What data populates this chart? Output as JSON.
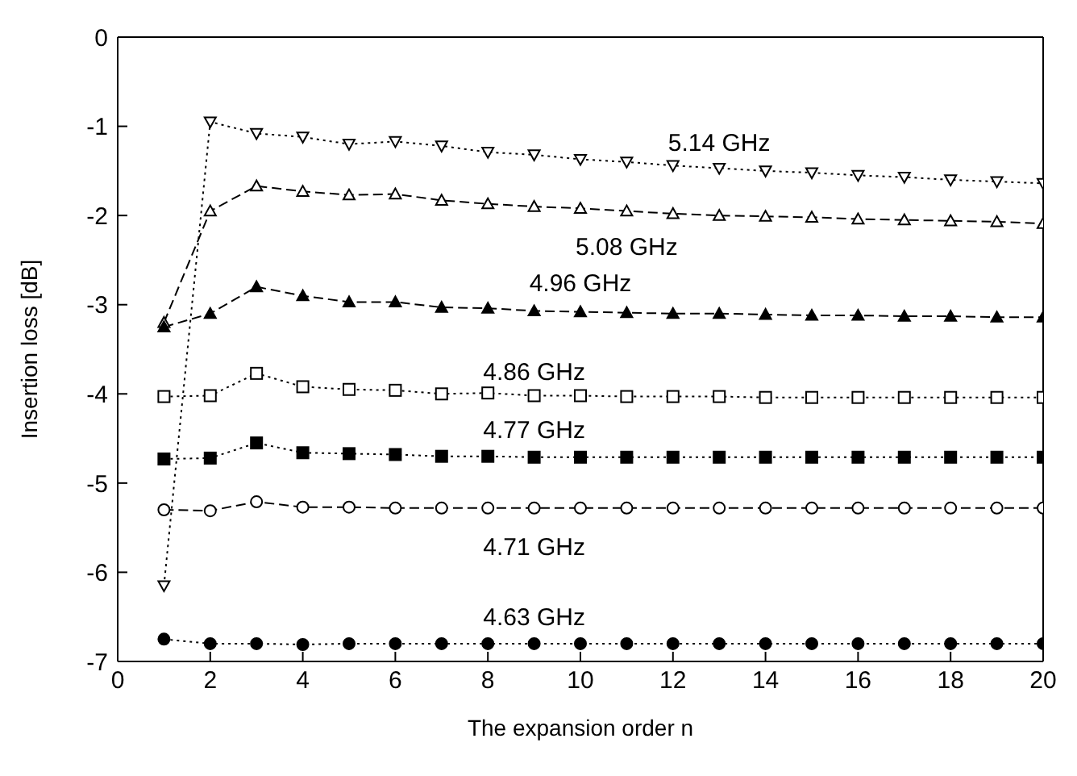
{
  "chart_data": {
    "type": "line",
    "xlabel": "The expansion order n",
    "ylabel": "Insertion loss [dB]",
    "x": [
      1,
      2,
      3,
      4,
      5,
      6,
      7,
      8,
      9,
      10,
      11,
      12,
      13,
      14,
      15,
      16,
      17,
      18,
      19,
      20
    ],
    "xlim": [
      0,
      20
    ],
    "xticks": [
      0,
      2,
      4,
      6,
      8,
      10,
      12,
      14,
      16,
      18,
      20
    ],
    "ylim": [
      -7,
      0
    ],
    "yticks": [
      -7,
      -6,
      -5,
      -4,
      -3,
      -2,
      -1,
      0
    ],
    "grid": false,
    "series": [
      {
        "name": "5.14 GHz",
        "color": "#000000",
        "marker": "triangle-down",
        "line_style": "dotted",
        "values": [
          -6.15,
          -0.95,
          -1.08,
          -1.12,
          -1.2,
          -1.17,
          -1.22,
          -1.29,
          -1.32,
          -1.37,
          -1.4,
          -1.44,
          -1.47,
          -1.5,
          -1.52,
          -1.55,
          -1.57,
          -1.6,
          -1.62,
          -1.64
        ]
      },
      {
        "name": "5.08 GHz",
        "color": "#000000",
        "marker": "triangle",
        "line_style": "dashed",
        "values": [
          -3.2,
          -1.95,
          -1.67,
          -1.73,
          -1.77,
          -1.76,
          -1.83,
          -1.87,
          -1.9,
          -1.92,
          -1.95,
          -1.98,
          -2.0,
          -2.01,
          -2.02,
          -2.04,
          -2.05,
          -2.06,
          -2.07,
          -2.09
        ]
      },
      {
        "name": "4.96 GHz",
        "color": "#000000",
        "marker": "triangle",
        "line_style": "dashed",
        "values": [
          -3.25,
          -3.1,
          -2.8,
          -2.9,
          -2.97,
          -2.97,
          -3.03,
          -3.04,
          -3.07,
          -3.08,
          -3.09,
          -3.1,
          -3.1,
          -3.11,
          -3.12,
          -3.12,
          -3.13,
          -3.13,
          -3.14,
          -3.14
        ]
      },
      {
        "name": "4.86 GHz",
        "color": "#000000",
        "marker": "square",
        "line_style": "dotted",
        "values": [
          -4.03,
          -4.02,
          -3.77,
          -3.92,
          -3.95,
          -3.96,
          -4.0,
          -3.99,
          -4.02,
          -4.02,
          -4.03,
          -4.03,
          -4.03,
          -4.04,
          -4.04,
          -4.04,
          -4.04,
          -4.04,
          -4.04,
          -4.04
        ]
      },
      {
        "name": "4.77 GHz",
        "color": "#000000",
        "marker": "square",
        "line_style": "dotted",
        "values": [
          -4.73,
          -4.72,
          -4.55,
          -4.66,
          -4.67,
          -4.68,
          -4.7,
          -4.7,
          -4.71,
          -4.71,
          -4.71,
          -4.71,
          -4.71,
          -4.71,
          -4.71,
          -4.71,
          -4.71,
          -4.71,
          -4.71,
          -4.71
        ]
      },
      {
        "name": "4.71 GHz",
        "color": "#000000",
        "marker": "circle",
        "line_style": "dashed",
        "values": [
          -5.3,
          -5.31,
          -5.21,
          -5.27,
          -5.27,
          -5.28,
          -5.28,
          -5.28,
          -5.28,
          -5.28,
          -5.28,
          -5.28,
          -5.28,
          -5.28,
          -5.28,
          -5.28,
          -5.28,
          -5.28,
          -5.28,
          -5.28
        ]
      },
      {
        "name": "4.63 GHz",
        "color": "#000000",
        "marker": "circle",
        "line_style": "dotted",
        "values": [
          -6.75,
          -6.8,
          -6.8,
          -6.81,
          -6.8,
          -6.8,
          -6.8,
          -6.8,
          -6.8,
          -6.8,
          -6.8,
          -6.8,
          -6.8,
          -6.8,
          -6.8,
          -6.8,
          -6.8,
          -6.8,
          -6.8,
          -6.8
        ]
      }
    ]
  }
}
